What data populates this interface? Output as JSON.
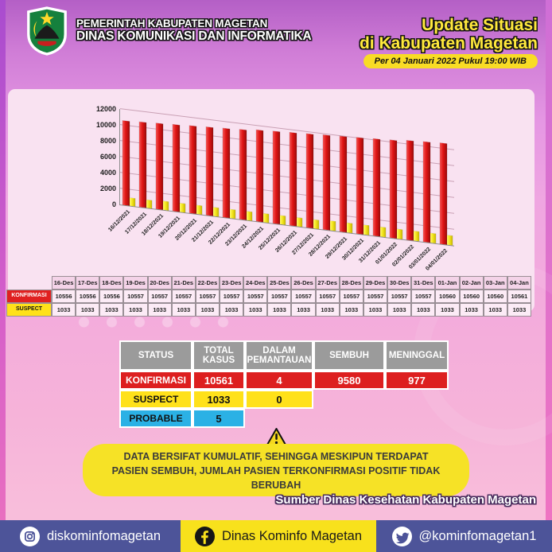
{
  "header": {
    "org_line1": "PEMERINTAH KABUPATEN MAGETAN",
    "org_line2": "DINAS KOMUNIKASI DAN INFORMATIKA",
    "title_line1": "Update Situasi",
    "title_line2": "di Kabupaten Magetan",
    "timestamp_badge": "Per 04 Januari 2022 Pukul 19:00 WIB"
  },
  "chart_data": {
    "type": "bar",
    "view": "3d-perspective",
    "categories": [
      "16/12/2021",
      "17/12/2021",
      "18/12/2021",
      "19/12/2021",
      "20/12/2021",
      "21/12/2021",
      "22/12/2021",
      "23/12/2021",
      "24/12/2021",
      "25/12/2021",
      "26/12/2021",
      "27/12/2021",
      "28/12/2021",
      "29/12/2021",
      "30/12/2021",
      "31/12/2021",
      "01/01/2022",
      "02/01/2022",
      "03/01/2022",
      "04/01/2022"
    ],
    "series": [
      {
        "name": "KONFIRMASI",
        "color": "#e01414",
        "values": [
          10556,
          10556,
          10556,
          10557,
          10557,
          10557,
          10557,
          10557,
          10557,
          10557,
          10557,
          10557,
          10557,
          10557,
          10557,
          10557,
          10560,
          10560,
          10560,
          10561
        ]
      },
      {
        "name": "SUSPECT",
        "color": "#f2e418",
        "values": [
          1033,
          1033,
          1033,
          1033,
          1033,
          1033,
          1033,
          1033,
          1033,
          1033,
          1033,
          1033,
          1033,
          1033,
          1033,
          1033,
          1033,
          1033,
          1033,
          1033
        ]
      }
    ],
    "title": "",
    "xlabel": "",
    "ylabel": "",
    "ylim": [
      0,
      12000
    ],
    "yticks": [
      0,
      2000,
      4000,
      6000,
      8000,
      10000,
      12000
    ],
    "grid": true,
    "legend": false
  },
  "date_table": {
    "dates": [
      "16-Des",
      "17-Des",
      "18-Des",
      "19-Des",
      "20-Des",
      "21-Des",
      "22-Des",
      "23-Des",
      "24-Des",
      "25-Des",
      "26-Des",
      "27-Des",
      "28-Des",
      "29-Des",
      "30-Des",
      "31-Des",
      "01-Jan",
      "02-Jan",
      "03-Jan",
      "04-Jan"
    ],
    "rows": [
      {
        "label": "KONFIRMASI",
        "color": "#e02020",
        "text_color": "#ffffff",
        "values": [
          "10556",
          "10556",
          "10556",
          "10557",
          "10557",
          "10557",
          "10557",
          "10557",
          "10557",
          "10557",
          "10557",
          "10557",
          "10557",
          "10557",
          "10557",
          "10557",
          "10560",
          "10560",
          "10560",
          "10561"
        ]
      },
      {
        "label": "SUSPECT",
        "color": "#ffe11a",
        "text_color": "#111111",
        "values": [
          "1033",
          "1033",
          "1033",
          "1033",
          "1033",
          "1033",
          "1033",
          "1033",
          "1033",
          "1033",
          "1033",
          "1033",
          "1033",
          "1033",
          "1033",
          "1033",
          "1033",
          "1033",
          "1033",
          "1033"
        ]
      }
    ]
  },
  "summary_table": {
    "headers": [
      "STATUS",
      "TOTAL KASUS",
      "DALAM PEMANTAUAN",
      "SEMBUH",
      "MENINGGAL"
    ],
    "rows": [
      {
        "label": "KONFIRMASI",
        "color": "#dd1f1f",
        "text_color": "#ffffff",
        "values": [
          "10561",
          "4",
          "9580",
          "977"
        ]
      },
      {
        "label": "SUSPECT",
        "color": "#ffe11a",
        "text_color": "#111111",
        "values": [
          "1033",
          "0",
          "",
          ""
        ]
      },
      {
        "label": "PROBABLE",
        "color": "#2bb1e5",
        "text_color": "#111111",
        "values": [
          "5",
          "",
          "",
          ""
        ]
      }
    ]
  },
  "warning": {
    "text": "DATA BERSIFAT KUMULATIF, SEHINGGA MESKIPUN TERDAPAT PASIEN SEMBUH, JUMLAH PASIEN TERKONFIRMASI POSITIF TIDAK BERUBAH"
  },
  "source": "Sumber Dinas Kesehatan Kabupaten Magetan",
  "footer": {
    "instagram": "diskominfomagetan",
    "facebook": "Dinas Kominfo Magetan",
    "twitter": "@kominfomagetan1"
  },
  "colors": {
    "accent_yellow": "#f9dc25",
    "bar_red": "#e01414",
    "bar_yellow": "#f2e418",
    "footer_blue": "#4d5499",
    "footer_yellow": "#f8e11c",
    "panel_pink": "#f9e2f1",
    "probable_cyan": "#2bb1e5"
  }
}
